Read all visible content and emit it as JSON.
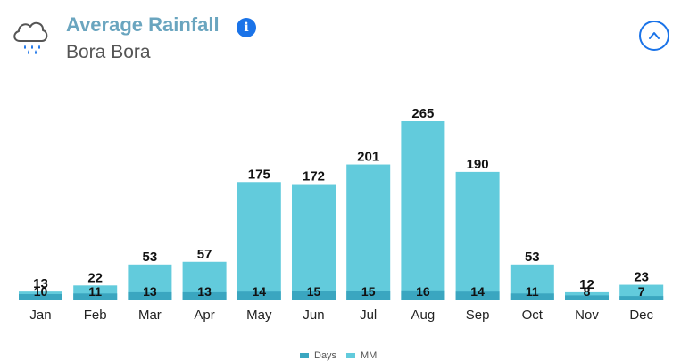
{
  "header": {
    "title": "Average Rainfall",
    "subtitle": "Bora Bora",
    "icons": {
      "weather": "rain-cloud-icon",
      "info": "info-icon",
      "info_glyph": "i",
      "collapse": "chevron-up-icon"
    }
  },
  "colors": {
    "title": "#6aa5bf",
    "accent": "#1a73e8",
    "mm_bar": "#62cbdc",
    "days_bar": "#3aa6c0"
  },
  "chart_data": {
    "type": "bar",
    "categories": [
      "Jan",
      "Feb",
      "Mar",
      "Apr",
      "May",
      "Jun",
      "Jul",
      "Aug",
      "Sep",
      "Oct",
      "Nov",
      "Dec"
    ],
    "series": [
      {
        "name": "Days",
        "values": [
          10,
          11,
          13,
          13,
          14,
          15,
          15,
          16,
          14,
          11,
          8,
          7
        ]
      },
      {
        "name": "MM",
        "values": [
          13,
          22,
          53,
          57,
          175,
          172,
          201,
          265,
          190,
          53,
          12,
          23
        ]
      }
    ],
    "overlap": true,
    "grid": false,
    "legend_position": "bottom-center"
  }
}
